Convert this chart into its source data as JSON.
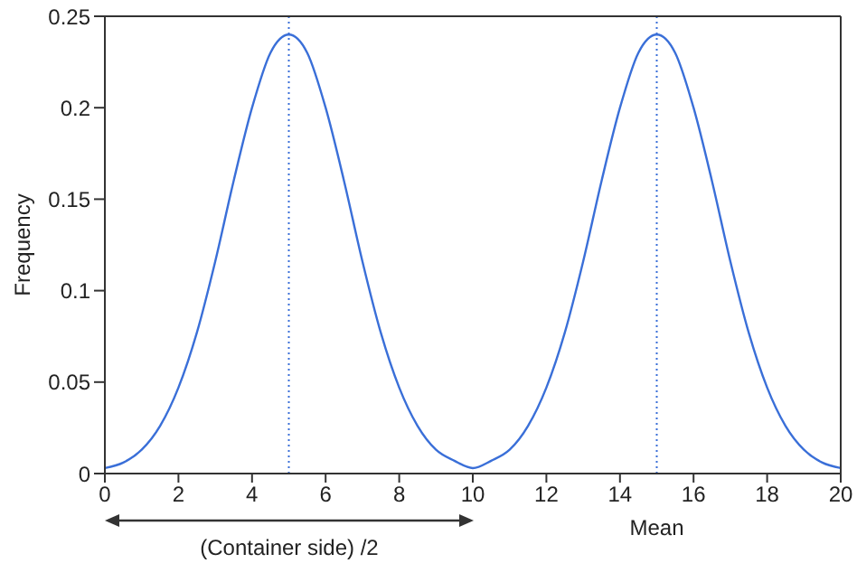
{
  "chart_data": {
    "type": "line",
    "xlabel": "Mean",
    "ylabel": "Frequency",
    "x": [
      0,
      0.5,
      1,
      1.5,
      2,
      2.5,
      3,
      3.5,
      4,
      4.5,
      5,
      5.5,
      6,
      6.5,
      7,
      7.5,
      8,
      8.5,
      9,
      9.5,
      10,
      10.5,
      11,
      11.5,
      12,
      12.5,
      13,
      13.5,
      14,
      14.5,
      15,
      15.5,
      16,
      16.5,
      17,
      17.5,
      18,
      18.5,
      19,
      19.5,
      20
    ],
    "series": [
      {
        "color": "#3a6fd8",
        "values": [
          0.003,
          0.006,
          0.013,
          0.026,
          0.047,
          0.077,
          0.116,
          0.16,
          0.2,
          0.23,
          0.24,
          0.23,
          0.2,
          0.16,
          0.116,
          0.077,
          0.047,
          0.026,
          0.013,
          0.007,
          0.003,
          0.007,
          0.013,
          0.026,
          0.047,
          0.077,
          0.116,
          0.16,
          0.2,
          0.23,
          0.24,
          0.23,
          0.2,
          0.16,
          0.116,
          0.077,
          0.047,
          0.026,
          0.013,
          0.006,
          0.003
        ]
      }
    ],
    "xlim": [
      0,
      20
    ],
    "xticks": [
      0,
      2,
      4,
      6,
      8,
      10,
      12,
      14,
      16,
      18,
      20
    ],
    "ylim": [
      0,
      0.25
    ],
    "yticks": [
      0,
      0.05,
      0.1,
      0.15,
      0.2,
      0.25
    ],
    "grid": false,
    "marker": "none",
    "line_style": "solid",
    "ref_lines": [
      {
        "axis": "x",
        "value": 5,
        "color": "#3a6fd8",
        "line_style": "dotted"
      },
      {
        "axis": "x",
        "value": 15,
        "color": "#3a6fd8",
        "line_style": "dotted"
      }
    ],
    "annotations": [
      "(Container side) /2"
    ]
  }
}
